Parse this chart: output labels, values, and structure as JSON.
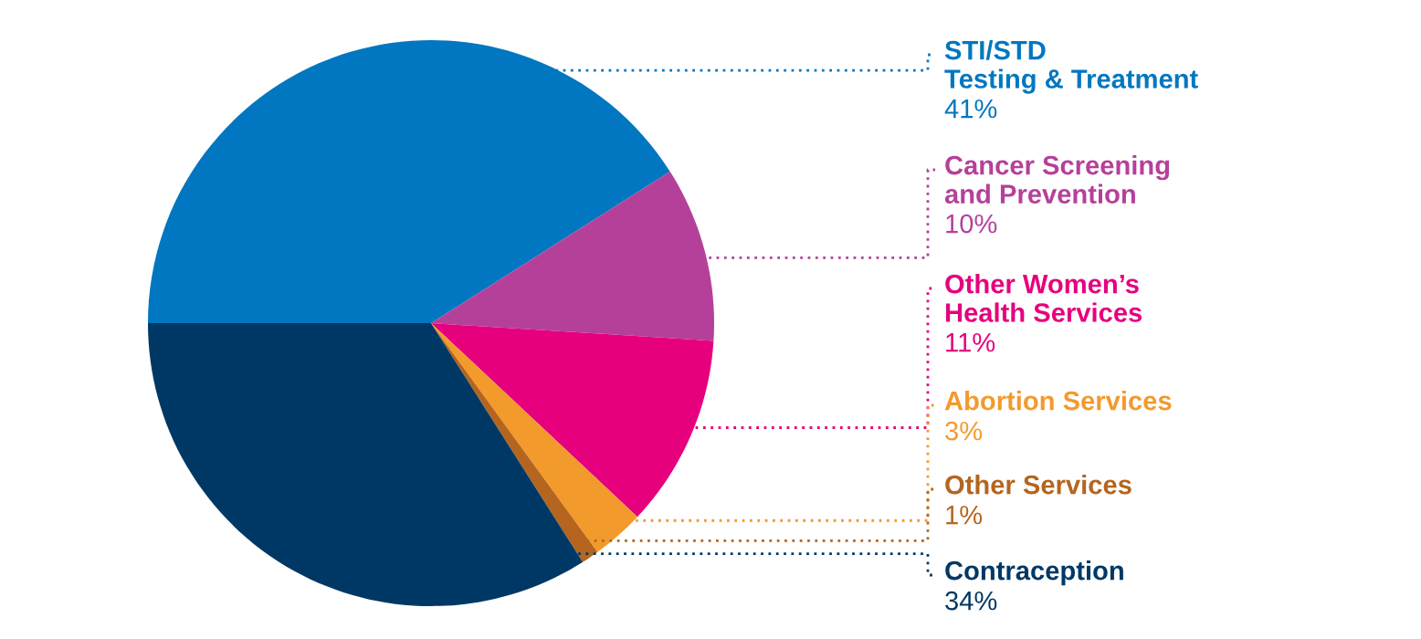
{
  "chart_data": {
    "type": "pie",
    "categories": [
      "STI/STD\nTesting & Treatment",
      "Cancer Screening\nand Prevention",
      "Other Women’s\nHealth Services",
      "Abortion Services",
      "Other Services",
      "Contraception"
    ],
    "values": [
      41,
      10,
      11,
      3,
      1,
      34
    ],
    "colors": [
      "#0077c0",
      "#b5409a",
      "#e6007e",
      "#f39a2c",
      "#b5651d",
      "#003865"
    ],
    "value_labels": [
      "41%",
      "10%",
      "11%",
      "3%",
      "1%",
      "34%"
    ]
  }
}
